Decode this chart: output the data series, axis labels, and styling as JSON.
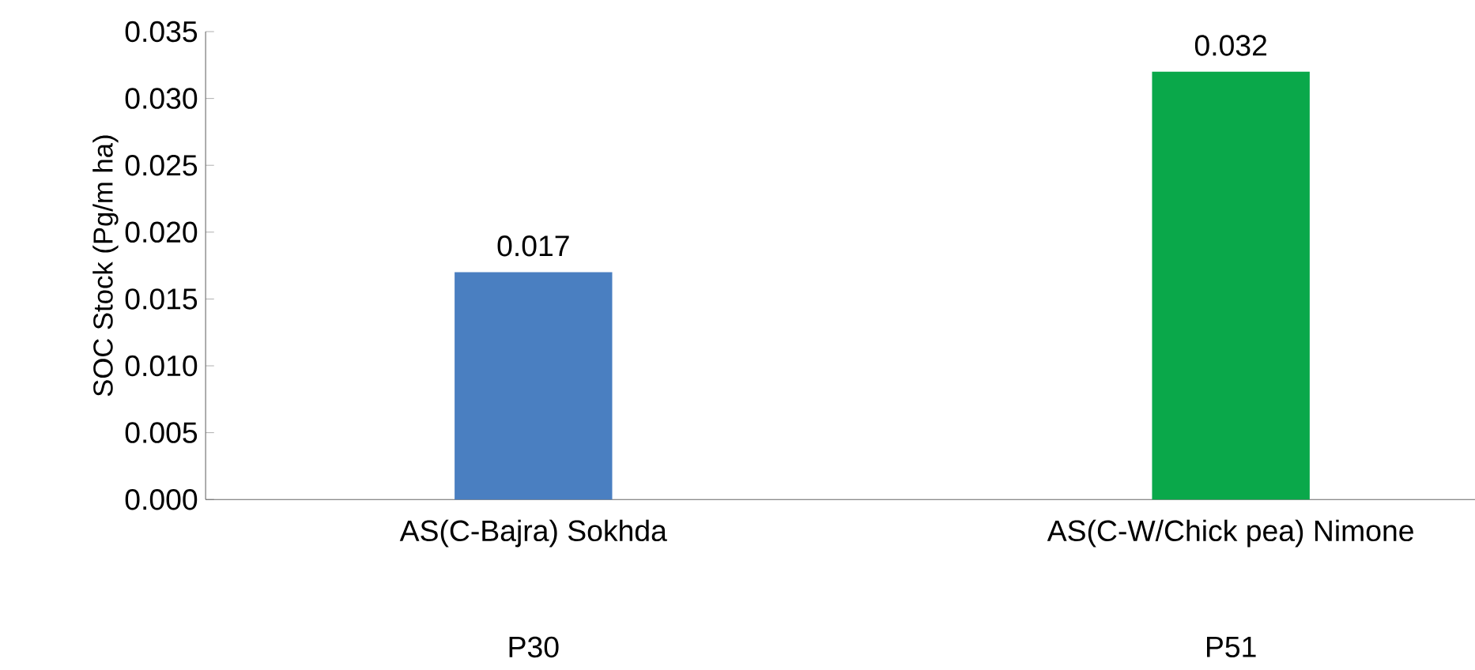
{
  "chart_data": {
    "type": "bar",
    "ylabel": "SOC Stock (Pg/m ha)",
    "categories": [
      "AS(C-Bajra) Sokhda",
      "AS(C-W/Chick pea) Nimone"
    ],
    "values": [
      0.017,
      0.032
    ],
    "colors": [
      "#4a7fc1",
      "#0aa84a"
    ],
    "ylim": [
      0,
      0.035
    ],
    "yticks": [
      {
        "value": 0,
        "label": "0.000"
      },
      {
        "value": 0.005,
        "label": "0.005"
      },
      {
        "value": 0.01,
        "label": "0.010"
      },
      {
        "value": 0.015,
        "label": "0.015"
      },
      {
        "value": 0.02,
        "label": "0.020"
      },
      {
        "value": 0.025,
        "label": "0.025"
      },
      {
        "value": 0.03,
        "label": "0.030"
      },
      {
        "value": 0.035,
        "label": "0.035"
      }
    ],
    "data_labels": true,
    "annotations": [
      "P30",
      "P51"
    ]
  }
}
